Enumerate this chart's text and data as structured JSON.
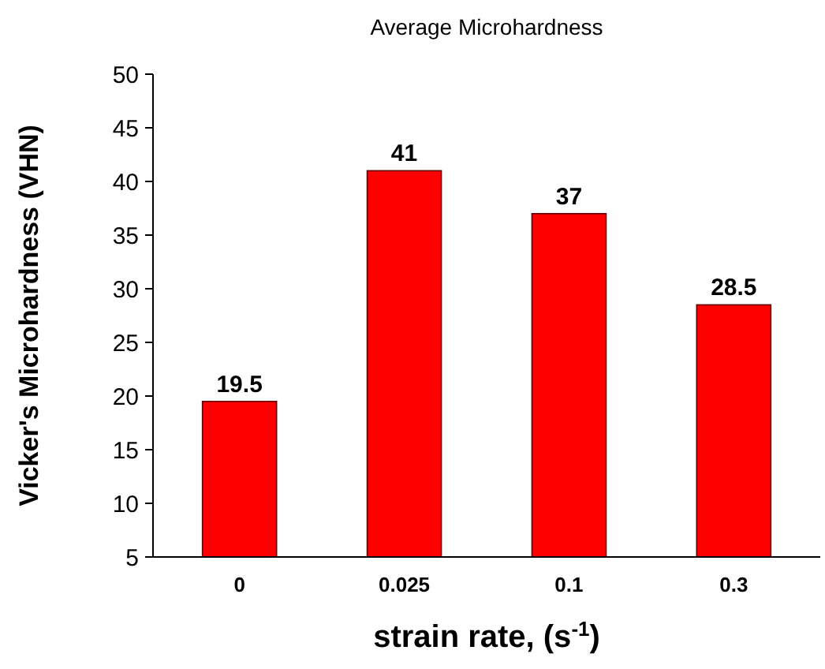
{
  "chart_data": {
    "type": "bar",
    "title": "Average Microhardness",
    "xlabel": "strain rate, (s$^{-1}$)",
    "ylabel": "Vicker's Microhardness (VHN)",
    "categories": [
      "0",
      "0.025",
      "0.1",
      "0.3"
    ],
    "values": [
      19.5,
      41,
      37,
      28.5
    ],
    "color": "#ff0000",
    "ylim": [
      5,
      50
    ],
    "yticks": [
      5,
      10,
      15,
      20,
      25,
      30,
      35,
      40,
      45,
      50
    ],
    "grid": false,
    "data_labels": true
  }
}
